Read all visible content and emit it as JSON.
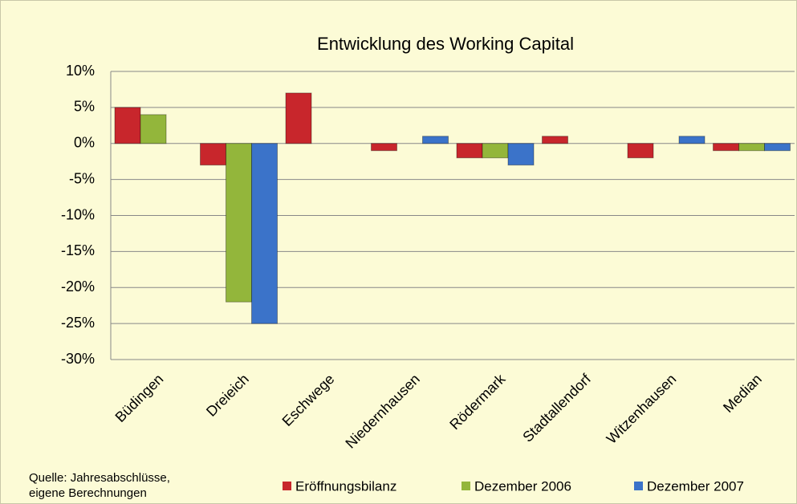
{
  "chart_data": {
    "type": "bar",
    "title": "Entwicklung des Working Capital",
    "categories": [
      "Büdingen",
      "Dreieich",
      "Eschwege",
      "Niedernhausen",
      "Rödermark",
      "Stadtallendorf",
      "Witzenhausen",
      "Median"
    ],
    "series": [
      {
        "name": "Eröffnungsbilanz",
        "color": "#c8262c",
        "values": [
          5,
          -3,
          7,
          -1,
          -2,
          1,
          -2,
          -1
        ]
      },
      {
        "name": "Dezember 2006",
        "color": "#93b63b",
        "values": [
          4,
          -22,
          null,
          null,
          -2,
          null,
          null,
          -1
        ]
      },
      {
        "name": "Dezember 2007",
        "color": "#3b73c9",
        "values": [
          null,
          -25,
          null,
          1,
          -3,
          null,
          1,
          -1
        ]
      }
    ],
    "ylim": [
      -30,
      10
    ],
    "yticks": [
      {
        "value": -30,
        "label": "-30%"
      },
      {
        "value": -25,
        "label": "-25%"
      },
      {
        "value": -20,
        "label": "-20%"
      },
      {
        "value": -15,
        "label": "-15%"
      },
      {
        "value": -10,
        "label": "-10%"
      },
      {
        "value": -5,
        "label": "-5%"
      },
      {
        "value": 0,
        "label": "0%"
      },
      {
        "value": 5,
        "label": "5%"
      },
      {
        "value": 10,
        "label": "10%"
      }
    ],
    "grid": true,
    "legend": "bottom",
    "source": [
      "Quelle: Jahresabschlüsse,",
      "eigene Berechnungen"
    ]
  }
}
